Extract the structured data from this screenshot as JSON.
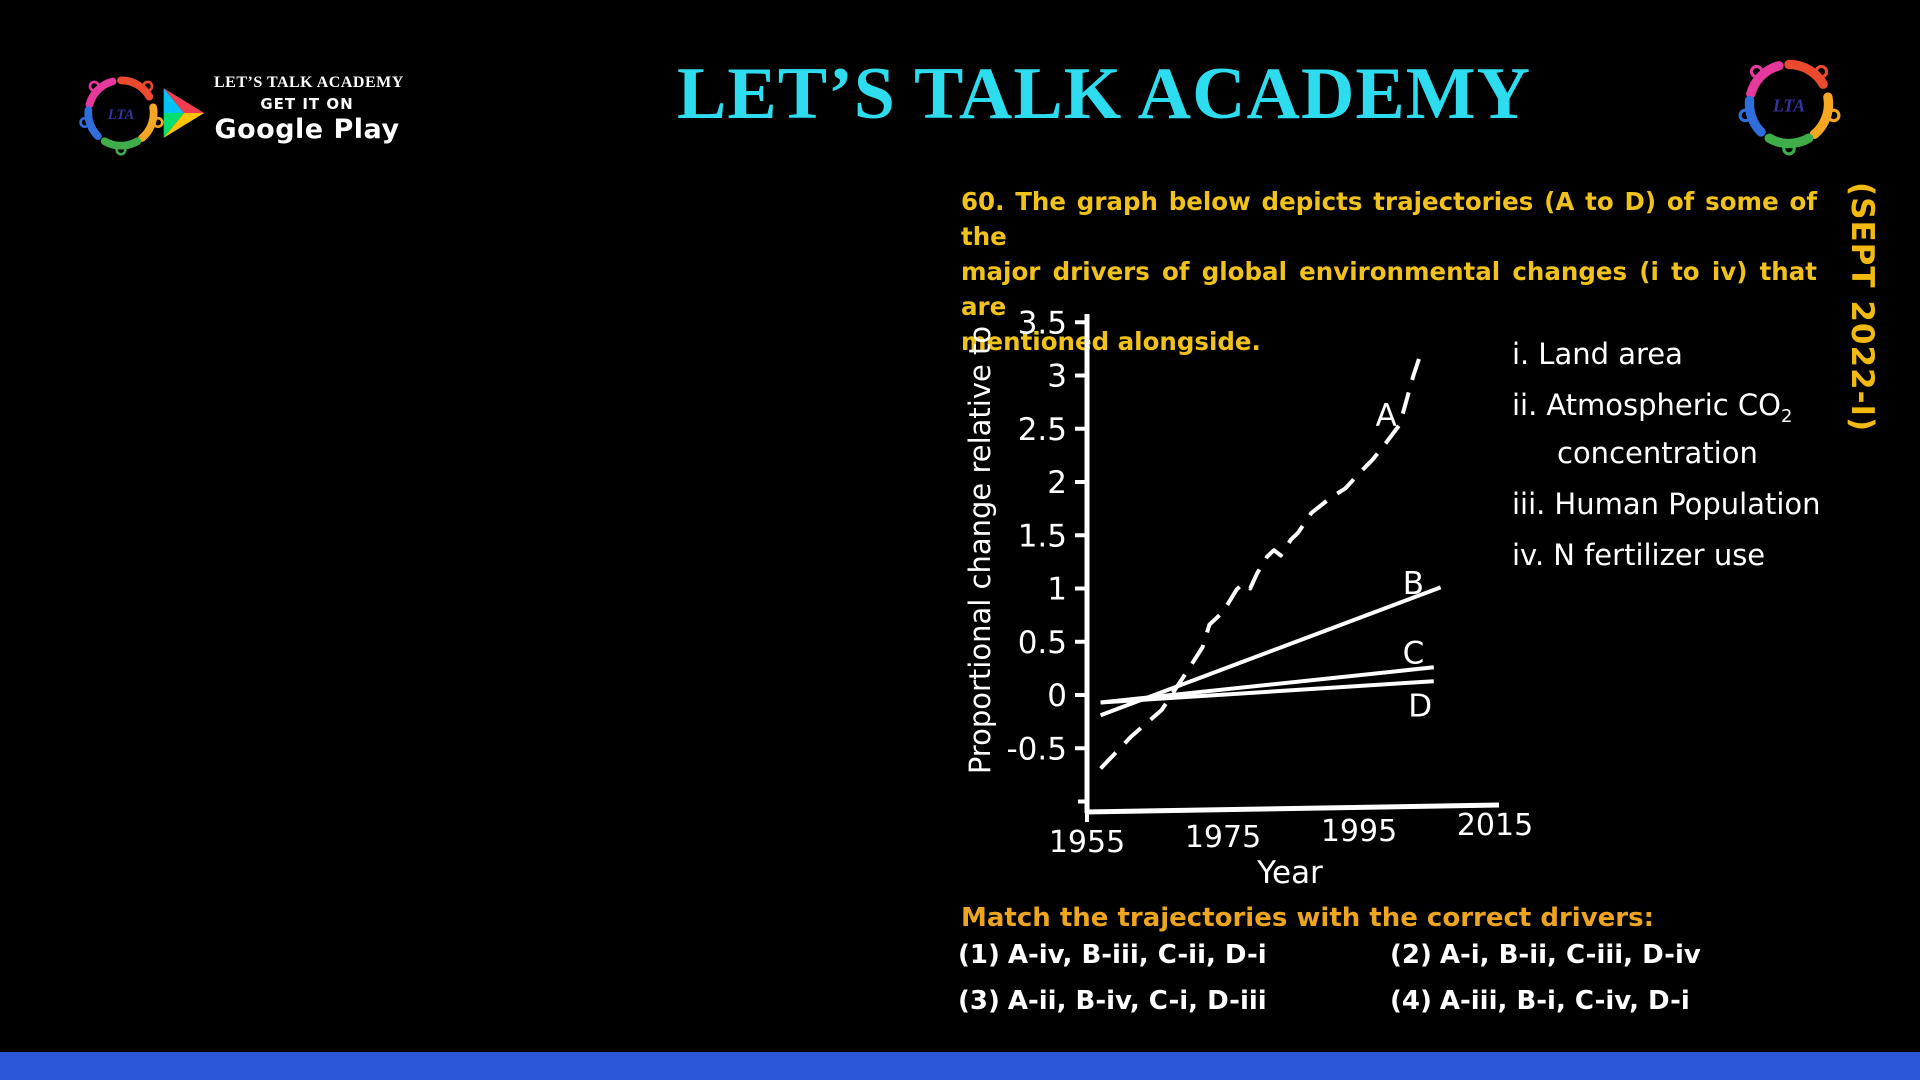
{
  "header": {
    "badge": {
      "app_name": "LET’S TALK ACADEMY",
      "get_it_on": "GET IT ON",
      "store_name": "Google Play"
    },
    "logo_text": "LTA",
    "title": "LET’S TALK ACADEMY",
    "session_tag": "(SEPT 2022-I)"
  },
  "question": {
    "lines": [
      "60. The graph below depicts trajectories (A to D) of some of the",
      "major drivers of global environmental changes (i to iv) that are",
      "mentioned alongside."
    ]
  },
  "chart_data": {
    "type": "line",
    "title": "",
    "xlabel": "Year",
    "ylabel": "Proportional change relative to",
    "xlim": [
      1955,
      2015
    ],
    "ylim": [
      -1,
      3.5
    ],
    "xticks": [
      1955,
      1975,
      1995,
      2015
    ],
    "yticks": [
      3.5,
      3,
      2.5,
      2,
      1.5,
      1,
      0.5,
      0,
      -0.5
    ],
    "grid": false,
    "line_color": "#ffffff",
    "series": [
      {
        "name": "A",
        "style": "dashed",
        "label_at": {
          "x": 1999,
          "y": 2.63
        },
        "x": [
          1957,
          1961.5,
          1966,
          1970,
          1972,
          1973,
          1975,
          1977,
          1978,
          1979,
          1980,
          1981.5,
          1982.5,
          1983.5,
          1985,
          1986,
          1988,
          1991,
          1993,
          1995,
          1997,
          1999,
          2001,
          2002,
          2003,
          2004
        ],
        "y": [
          -0.69,
          -0.39,
          -0.14,
          0.25,
          0.45,
          0.66,
          0.78,
          0.99,
          1.05,
          1.0,
          1.14,
          1.3,
          1.36,
          1.31,
          1.46,
          1.52,
          1.71,
          1.86,
          1.94,
          2.08,
          2.21,
          2.37,
          2.54,
          2.77,
          3.0,
          3.19
        ]
      },
      {
        "name": "B",
        "style": "solid",
        "label_at": {
          "x": 2003,
          "y": 1.05
        },
        "x": [
          1957,
          2007
        ],
        "y": [
          -0.19,
          1.01
        ]
      },
      {
        "name": "C",
        "style": "solid",
        "label_at": {
          "x": 2003,
          "y": 0.4
        },
        "x": [
          1957,
          2006
        ],
        "y": [
          -0.07,
          0.26
        ]
      },
      {
        "name": "D",
        "style": "solid",
        "label_at": {
          "x": 2004,
          "y": -0.1
        },
        "x": [
          1957,
          2006
        ],
        "y": [
          -0.07,
          0.13
        ]
      }
    ]
  },
  "drivers": {
    "items": [
      {
        "num": "i.",
        "text": "Land area"
      },
      {
        "num": "ii.",
        "text": "Atmospheric CO",
        "sub": "2",
        "cont": "concentration"
      },
      {
        "num": "iii.",
        "text": "Human Population"
      },
      {
        "num": "iv.",
        "text": "N fertilizer use"
      }
    ]
  },
  "match": {
    "prompt": "Match the trajectories with the correct drivers:"
  },
  "options": [
    {
      "num": "(1)",
      "text": "A-iv, B-iii, C-ii, D-i"
    },
    {
      "num": "(2)",
      "text": "A-i, B-ii, C-iii, D-iv"
    },
    {
      "num": "(3)",
      "text": "A-ii, B-iv, C-i, D-iii"
    },
    {
      "num": "(4)",
      "text": "A-iii, B-i, C-iv, D-i"
    }
  ],
  "colors": {
    "background": "#000000",
    "title_cyan": "#2edcf0",
    "question_yellow": "#f1c21b",
    "match_orange": "#eda41e",
    "session_tag_yellow": "#f2ba11",
    "chart_white": "#ffffff",
    "footer_blue": "#2c57d6",
    "logo_lta_navy": "#33339e"
  }
}
